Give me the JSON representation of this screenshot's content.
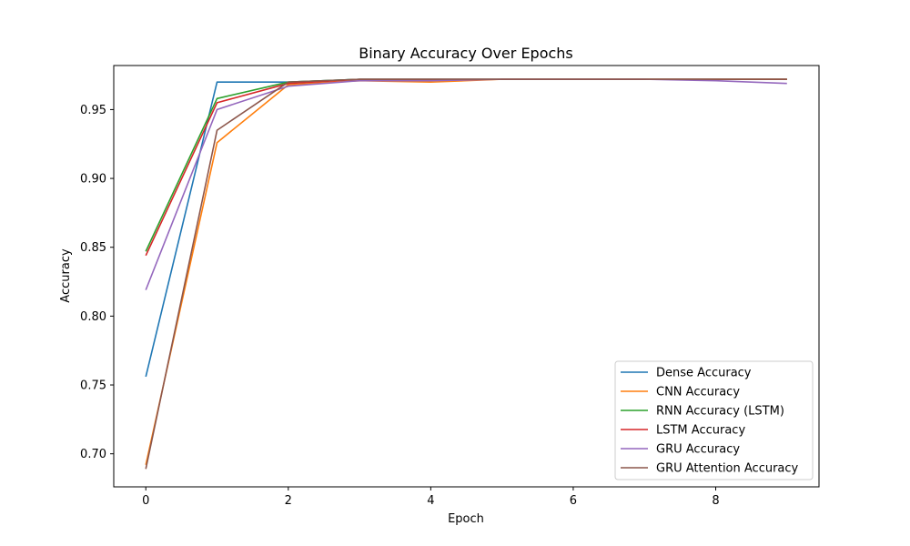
{
  "chart_data": {
    "type": "line",
    "title": "Binary Accuracy Over Epochs",
    "xlabel": "Epoch",
    "ylabel": "Accuracy",
    "xlim": [
      -0.45,
      9.45
    ],
    "ylim": [
      0.676,
      0.982
    ],
    "x_ticks": [
      0,
      2,
      4,
      6,
      8
    ],
    "y_ticks": [
      0.7,
      0.75,
      0.8,
      0.85,
      0.9,
      0.95
    ],
    "y_tick_labels": [
      "0.70",
      "0.75",
      "0.80",
      "0.85",
      "0.90",
      "0.95"
    ],
    "grid": false,
    "legend_position": "lower-right",
    "x": [
      0,
      1,
      2,
      3,
      4,
      5,
      6,
      7,
      8,
      9
    ],
    "series": [
      {
        "name": "Dense Accuracy",
        "color": "#1f77b4",
        "values": [
          0.756,
          0.97,
          0.97,
          0.972,
          0.972,
          0.972,
          0.972,
          0.972,
          0.972,
          0.972
        ]
      },
      {
        "name": "CNN Accuracy",
        "color": "#ff7f0e",
        "values": [
          0.692,
          0.926,
          0.968,
          0.971,
          0.97,
          0.972,
          0.972,
          0.972,
          0.972,
          0.972
        ]
      },
      {
        "name": "RNN Accuracy (LSTM)",
        "color": "#2ca02c",
        "values": [
          0.847,
          0.958,
          0.97,
          0.972,
          0.972,
          0.972,
          0.972,
          0.972,
          0.972,
          0.972
        ]
      },
      {
        "name": "LSTM Accuracy",
        "color": "#d62728",
        "values": [
          0.844,
          0.955,
          0.969,
          0.972,
          0.972,
          0.972,
          0.972,
          0.972,
          0.972,
          0.972
        ]
      },
      {
        "name": "GRU Accuracy",
        "color": "#9467bd",
        "values": [
          0.819,
          0.95,
          0.967,
          0.971,
          0.971,
          0.972,
          0.972,
          0.972,
          0.971,
          0.969
        ]
      },
      {
        "name": "GRU Attention Accuracy",
        "color": "#8c564b",
        "values": [
          0.689,
          0.935,
          0.97,
          0.972,
          0.972,
          0.972,
          0.972,
          0.972,
          0.972,
          0.972
        ]
      }
    ]
  }
}
